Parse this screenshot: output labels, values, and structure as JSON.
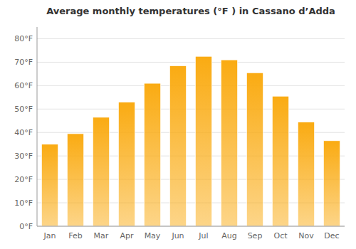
{
  "chart_data": {
    "type": "bar",
    "title": "Average monthly temperatures (°F ) in Cassano d’Adda",
    "categories": [
      "Jan",
      "Feb",
      "Mar",
      "Apr",
      "May",
      "Jun",
      "Jul",
      "Aug",
      "Sep",
      "Oct",
      "Nov",
      "Dec"
    ],
    "values": [
      35,
      39.5,
      46.5,
      53,
      61,
      68.5,
      72.5,
      71,
      65.5,
      55.5,
      44.5,
      36.5
    ],
    "color": "#FAAB12",
    "ylim": [
      0,
      85
    ],
    "yticks": [
      {
        "value": 0,
        "label": "0°F"
      },
      {
        "value": 10,
        "label": "10°F"
      },
      {
        "value": 20,
        "label": "20°F"
      },
      {
        "value": 30,
        "label": "30°F"
      },
      {
        "value": 40,
        "label": "40°F"
      },
      {
        "value": 50,
        "label": "50°F"
      },
      {
        "value": 60,
        "label": "60°F"
      },
      {
        "value": 70,
        "label": "70°F"
      },
      {
        "value": 80,
        "label": "80°F"
      }
    ],
    "grid": true
  }
}
